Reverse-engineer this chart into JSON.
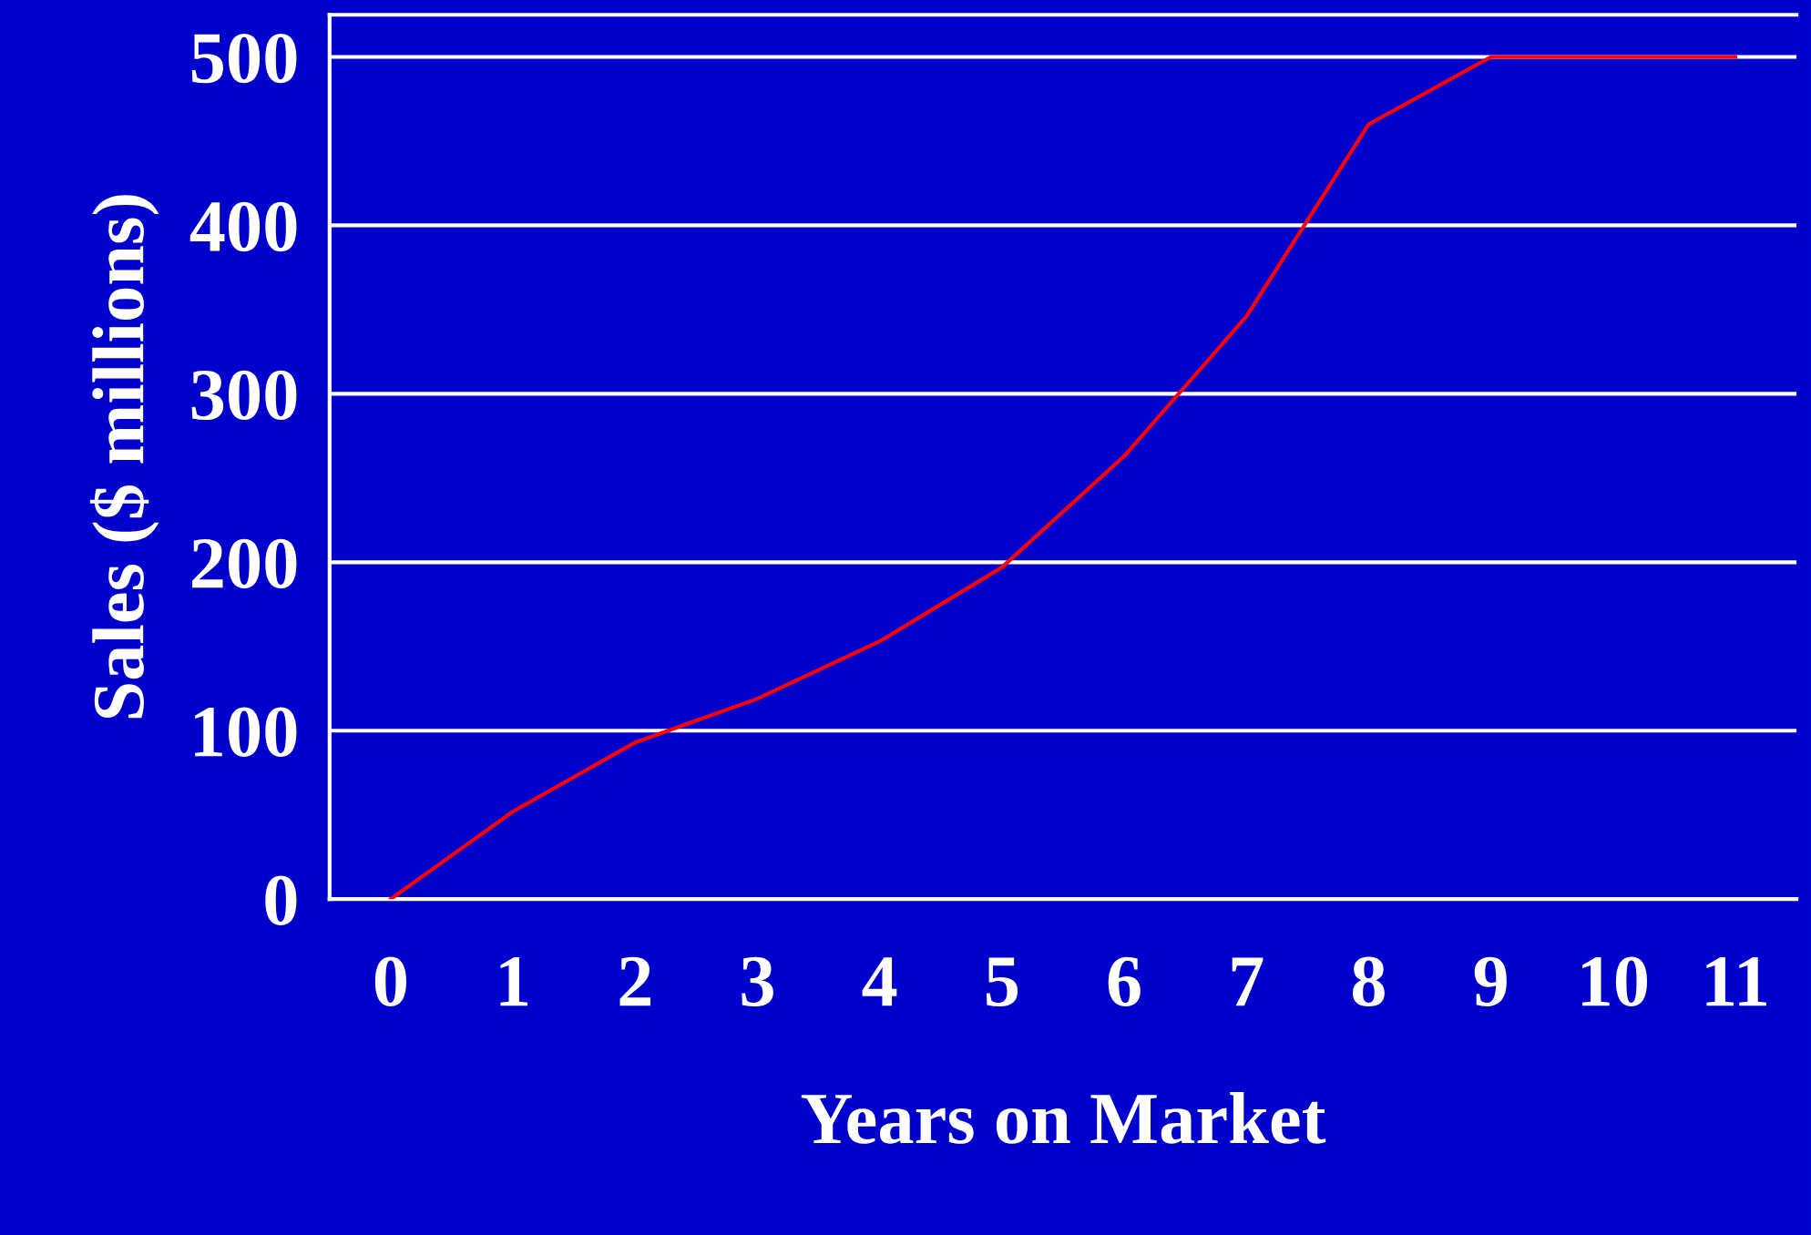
{
  "chart_data": {
    "type": "line",
    "xlabel": "Years on Market",
    "ylabel": "Sales ($ millions)",
    "x": [
      0,
      1,
      2,
      3,
      4,
      5,
      6,
      7,
      8,
      9,
      10,
      11
    ],
    "series": [
      {
        "color": "#ff0000",
        "values": [
          0,
          52,
          93,
          119,
          153,
          197,
          263,
          346,
          460,
          500,
          500,
          500
        ]
      }
    ],
    "xlim": [
      -0.5,
      11.5
    ],
    "ylim": [
      0,
      525
    ],
    "xticks": [
      0,
      1,
      2,
      3,
      4,
      5,
      6,
      7,
      8,
      9,
      10,
      11
    ],
    "yticks": [
      0,
      100,
      200,
      300,
      400,
      500
    ],
    "grid": "y",
    "marker": "none",
    "line_style": "solid"
  }
}
